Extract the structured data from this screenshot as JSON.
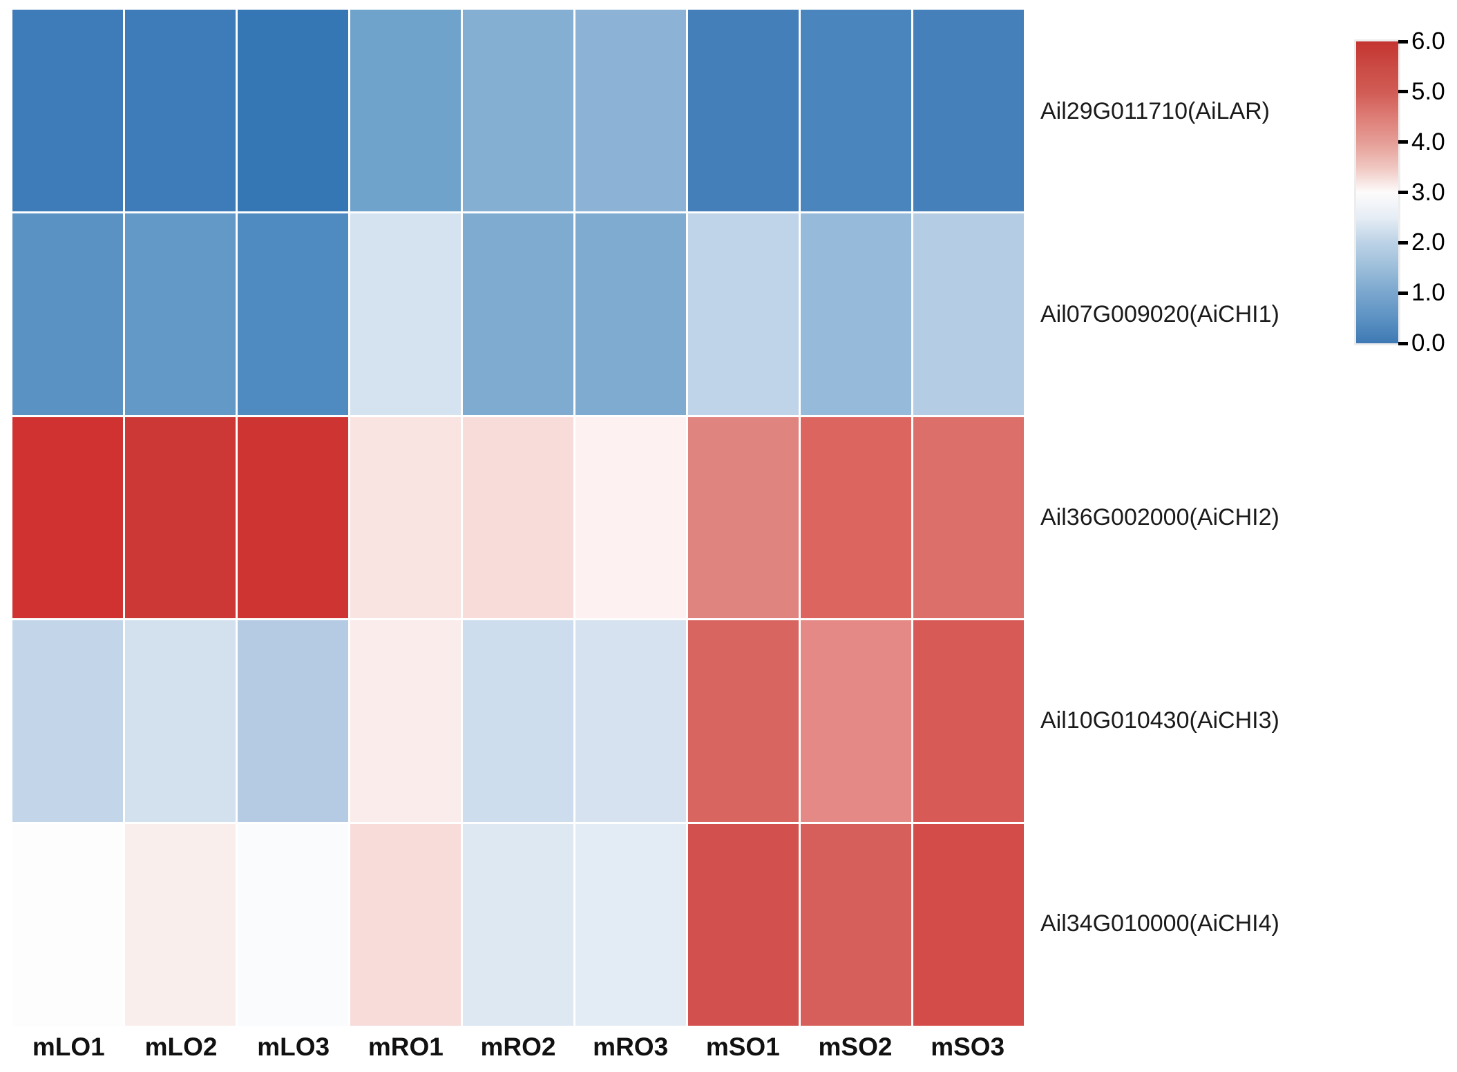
{
  "chart_data": {
    "type": "heatmap",
    "x_categories": [
      "mLO1",
      "mLO2",
      "mLO3",
      "mRO1",
      "mRO2",
      "mRO3",
      "mSO1",
      "mSO2",
      "mSO3"
    ],
    "y_categories": [
      "Ail29G011710(AiLAR)",
      "Ail07G009020(AiCHI1)",
      "Ail36G002000(AiCHI2)",
      "Ail10G010430(AiCHI3)",
      "Ail34G010000(AiCHI4)"
    ],
    "series": [
      {
        "name": "Ail29G011710(AiLAR)",
        "values": [
          0.3,
          0.3,
          0.2,
          1.3,
          1.6,
          1.7,
          0.5,
          0.6,
          0.5
        ]
      },
      {
        "name": "Ail07G009020(AiCHI1)",
        "values": [
          1.0,
          1.1,
          0.8,
          2.55,
          1.5,
          1.5,
          2.35,
          1.9,
          2.2
        ]
      },
      {
        "name": "Ail36G002000(AiCHI2)",
        "values": [
          5.9,
          5.8,
          5.85,
          3.3,
          3.45,
          3.1,
          4.5,
          4.8,
          4.75
        ]
      },
      {
        "name": "Ail10G010430(AiCHI3)",
        "values": [
          2.4,
          2.5,
          2.15,
          3.25,
          2.45,
          2.55,
          4.95,
          4.5,
          5.05
        ]
      },
      {
        "name": "Ail34G010000(AiCHI4)",
        "values": [
          3.0,
          3.1,
          2.95,
          3.45,
          2.65,
          2.7,
          5.2,
          5.0,
          5.25
        ]
      }
    ],
    "cell_colors": [
      [
        "#3d7cb8",
        "#3d7cb8",
        "#3577b5",
        "#6fa3cc",
        "#85aed3",
        "#8cb3d6",
        "#447fb9",
        "#4a85bd",
        "#4680ba"
      ],
      [
        "#5b92c4",
        "#6399c7",
        "#4f8bc0",
        "#d5e3f0",
        "#7fabd1",
        "#7fabd1",
        "#bfd4e8",
        "#96bad9",
        "#b5cde4"
      ],
      [
        "#cf3231",
        "#cc3836",
        "#ce3432",
        "#f9e4e1",
        "#f8dcda",
        "#fdf1f1",
        "#e08480",
        "#dc665f",
        "#dd6f6a"
      ],
      [
        "#c3d6e9",
        "#d3e1ee",
        "#b4cbe3",
        "#faeceb",
        "#cddded",
        "#d6e2ef",
        "#d96560",
        "#e48985",
        "#d75a57"
      ],
      [
        "#fdfdfd",
        "#faeeec",
        "#fafbfd",
        "#f7dcda",
        "#dde8f2",
        "#e3ecf4",
        "#d2504d",
        "#d75f5b",
        "#d34c49"
      ]
    ],
    "colorbar": {
      "min": 0.0,
      "max": 6.0,
      "tick_labels": [
        "6.0",
        "5.0",
        "4.0",
        "3.0",
        "2.0",
        "1.0",
        "0.0"
      ],
      "position": "right",
      "gradient_stops": [
        {
          "pos": 0.0,
          "color": "#c43430"
        },
        {
          "pos": 0.083,
          "color": "#cb4a44"
        },
        {
          "pos": 0.167,
          "color": "#d15b55"
        },
        {
          "pos": 0.25,
          "color": "#dd7d76"
        },
        {
          "pos": 0.333,
          "color": "#e59d96"
        },
        {
          "pos": 0.417,
          "color": "#f0c6c0"
        },
        {
          "pos": 0.5,
          "color": "#fdfbfb"
        },
        {
          "pos": 0.583,
          "color": "#e6edf5"
        },
        {
          "pos": 0.667,
          "color": "#bcd2e6"
        },
        {
          "pos": 0.75,
          "color": "#9cbeda"
        },
        {
          "pos": 0.833,
          "color": "#7aa6ce"
        },
        {
          "pos": 0.917,
          "color": "#5c92c3"
        },
        {
          "pos": 1.0,
          "color": "#3e79b4"
        }
      ]
    },
    "colormap_description": "diverging blue-white-red (blue low 0.0, white mid 3.0, red high 6.0)",
    "cell_border_color": "#ffffff",
    "grid": false,
    "title": "",
    "xlabel": "",
    "ylabel": ""
  }
}
